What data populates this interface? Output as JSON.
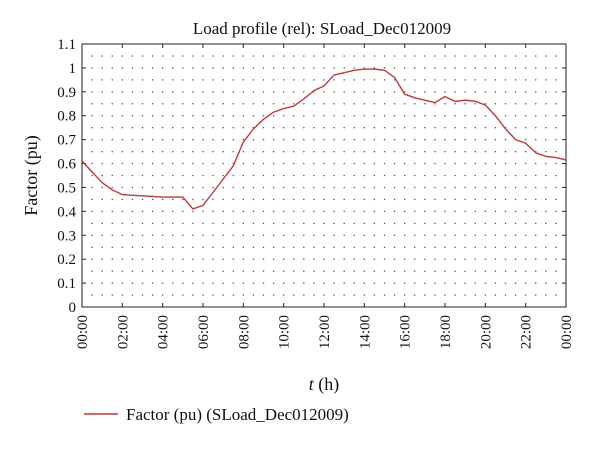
{
  "chart_data": {
    "type": "line",
    "title": "Load profile (rel): SLoad_Dec012009",
    "ylabel": "Factor (pu)",
    "xlabel_italic": "t",
    "xlabel_rest": " (h)",
    "xlim": [
      0,
      24
    ],
    "ylim": [
      0,
      1.1
    ],
    "yticks": [
      "0",
      "0.1",
      "0.2",
      "0.3",
      "0.4",
      "0.5",
      "0.6",
      "0.7",
      "0.8",
      "0.9",
      "1",
      "1.1"
    ],
    "xticks": [
      "00:00",
      "02:00",
      "04:00",
      "06:00",
      "08:00",
      "10:00",
      "12:00",
      "14:00",
      "16:00",
      "18:00",
      "20:00",
      "22:00",
      "00:00"
    ],
    "grid": "dotted",
    "legend_position": "bottom",
    "series": [
      {
        "name": "Factor (pu) (SLoad_Dec012009)",
        "color": "#c0393b",
        "x": [
          0,
          0.5,
          1,
          1.5,
          2,
          3,
          4,
          4.5,
          5,
          5.5,
          6,
          6.5,
          7,
          7.5,
          8,
          8.5,
          9,
          9.5,
          10,
          10.5,
          11,
          11.5,
          12,
          12.5,
          13,
          13.5,
          14,
          14.5,
          15,
          15.5,
          16,
          16.5,
          17,
          17.5,
          18,
          18.5,
          19,
          19.5,
          20,
          20.5,
          21,
          21.5,
          22,
          22.5,
          23,
          23.5,
          24
        ],
        "values": [
          0.61,
          0.565,
          0.52,
          0.49,
          0.47,
          0.465,
          0.46,
          0.46,
          0.46,
          0.41,
          0.425,
          0.48,
          0.535,
          0.59,
          0.69,
          0.745,
          0.785,
          0.815,
          0.83,
          0.84,
          0.87,
          0.905,
          0.925,
          0.97,
          0.98,
          0.99,
          0.995,
          0.995,
          0.99,
          0.96,
          0.89,
          0.875,
          0.865,
          0.855,
          0.88,
          0.86,
          0.865,
          0.86,
          0.845,
          0.8,
          0.745,
          0.7,
          0.685,
          0.645,
          0.63,
          0.625,
          0.615
        ]
      }
    ]
  }
}
